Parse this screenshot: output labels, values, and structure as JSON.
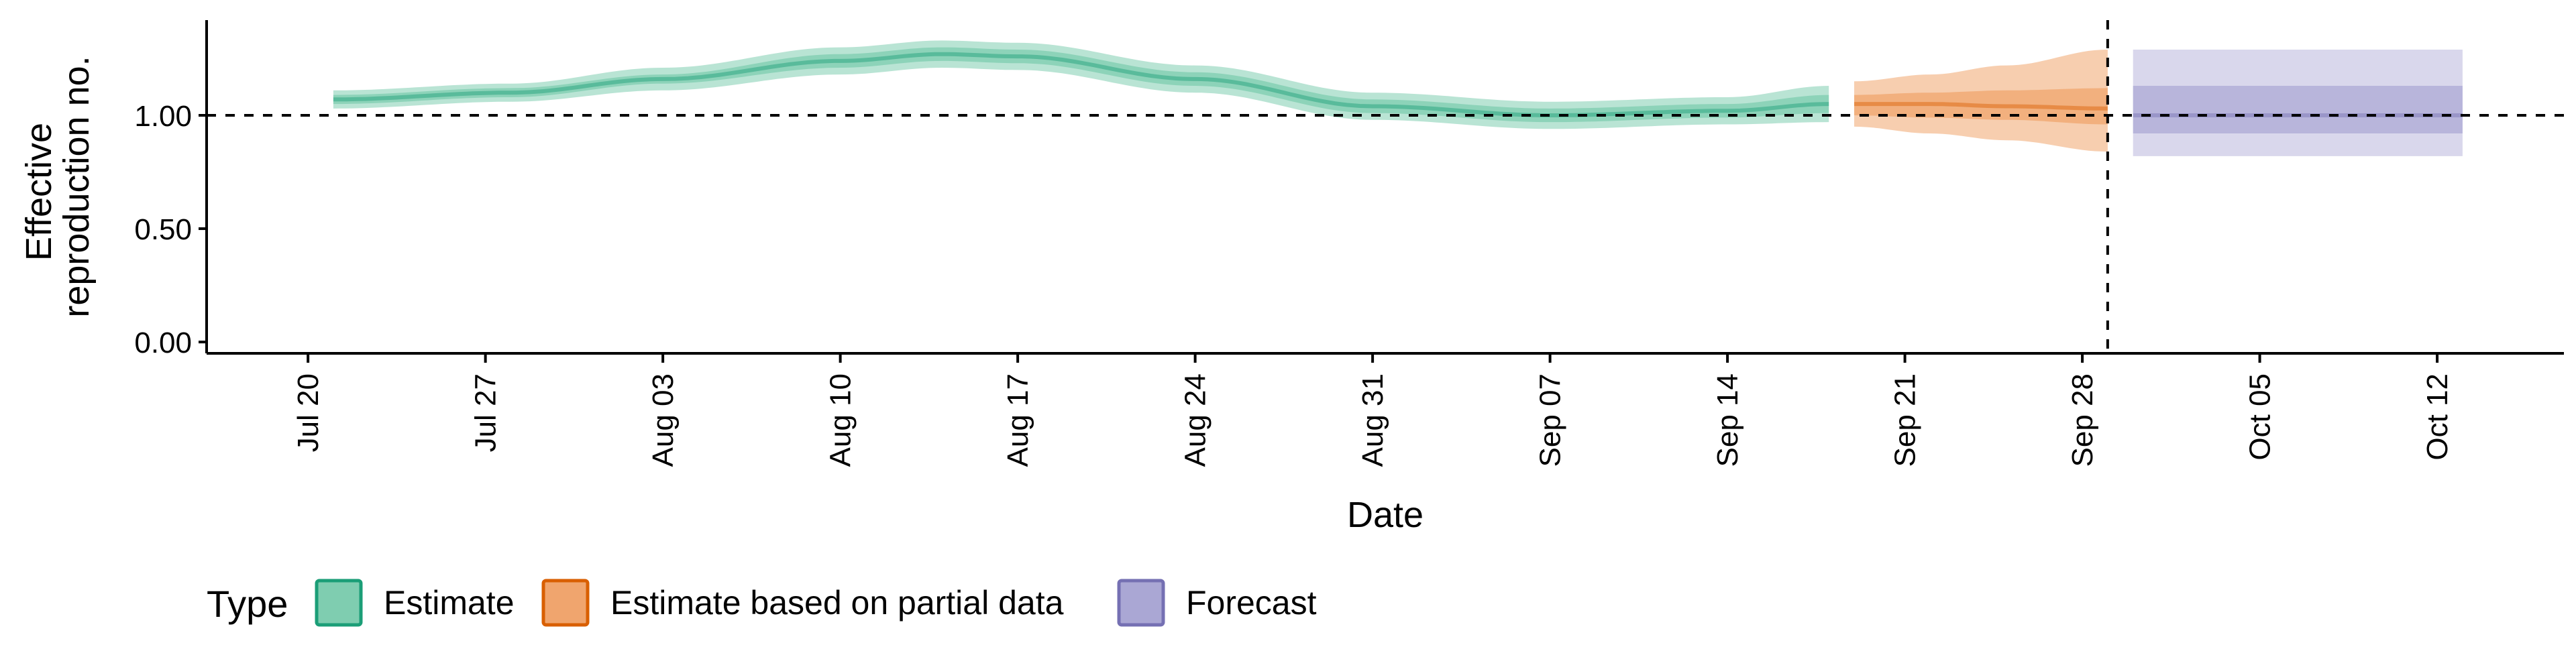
{
  "chart_data": {
    "type": "area",
    "title": "",
    "xlabel": "Date",
    "ylabel_lines": [
      "Effective",
      "reproduction no."
    ],
    "y_ticks": [
      "0.00",
      "0.50",
      "1.00"
    ],
    "y_tick_values": [
      0,
      0.5,
      1.0
    ],
    "ylim": [
      -0.05,
      1.42
    ],
    "x_domain": [
      "2021-07-16",
      "2021-10-17"
    ],
    "x_ticks": [
      {
        "date": "2021-07-20",
        "label": "Jul 20"
      },
      {
        "date": "2021-07-27",
        "label": "Jul 27"
      },
      {
        "date": "2021-08-03",
        "label": "Aug 03"
      },
      {
        "date": "2021-08-10",
        "label": "Aug 10"
      },
      {
        "date": "2021-08-17",
        "label": "Aug 17"
      },
      {
        "date": "2021-08-24",
        "label": "Aug 24"
      },
      {
        "date": "2021-08-31",
        "label": "Aug 31"
      },
      {
        "date": "2021-09-07",
        "label": "Sep 07"
      },
      {
        "date": "2021-09-14",
        "label": "Sep 14"
      },
      {
        "date": "2021-09-21",
        "label": "Sep 21"
      },
      {
        "date": "2021-09-28",
        "label": "Sep 28"
      },
      {
        "date": "2021-10-05",
        "label": "Oct 05"
      },
      {
        "date": "2021-10-12",
        "label": "Oct 12"
      }
    ],
    "reference_lines": {
      "y": 1.0,
      "x": "2021-09-29"
    },
    "legend": {
      "title": "Type",
      "position": "bottom"
    },
    "colors": {
      "estimate": "#1b9e77",
      "estimate_fill": "#7fcdb0",
      "partial": "#d95f02",
      "partial_fill": "#f0a56e",
      "forecast": "#7570b3",
      "forecast_fill": "#aaa7d4"
    },
    "series": [
      {
        "name": "Estimate",
        "key": "estimate",
        "points": [
          {
            "x": "2021-07-21",
            "median": 1.07,
            "lower_50": 1.05,
            "upper_50": 1.09,
            "lower_90": 1.03,
            "upper_90": 1.11
          },
          {
            "x": "2021-07-28",
            "median": 1.1,
            "lower_50": 1.08,
            "upper_50": 1.12,
            "lower_90": 1.06,
            "upper_90": 1.14
          },
          {
            "x": "2021-08-03",
            "median": 1.16,
            "lower_50": 1.14,
            "upper_50": 1.18,
            "lower_90": 1.11,
            "upper_90": 1.21
          },
          {
            "x": "2021-08-10",
            "median": 1.24,
            "lower_50": 1.21,
            "upper_50": 1.27,
            "lower_90": 1.18,
            "upper_90": 1.3
          },
          {
            "x": "2021-08-14",
            "median": 1.27,
            "lower_50": 1.24,
            "upper_50": 1.3,
            "lower_90": 1.21,
            "upper_90": 1.33
          },
          {
            "x": "2021-08-17",
            "median": 1.26,
            "lower_50": 1.23,
            "upper_50": 1.29,
            "lower_90": 1.2,
            "upper_90": 1.32
          },
          {
            "x": "2021-08-24",
            "median": 1.16,
            "lower_50": 1.13,
            "upper_50": 1.19,
            "lower_90": 1.1,
            "upper_90": 1.22
          },
          {
            "x": "2021-08-31",
            "median": 1.04,
            "lower_50": 1.01,
            "upper_50": 1.07,
            "lower_90": 0.98,
            "upper_90": 1.1
          },
          {
            "x": "2021-09-07",
            "median": 1.0,
            "lower_50": 0.97,
            "upper_50": 1.03,
            "lower_90": 0.94,
            "upper_90": 1.06
          },
          {
            "x": "2021-09-14",
            "median": 1.02,
            "lower_50": 0.99,
            "upper_50": 1.05,
            "lower_90": 0.96,
            "upper_90": 1.08
          },
          {
            "x": "2021-09-18",
            "median": 1.05,
            "lower_50": 1.01,
            "upper_50": 1.09,
            "lower_90": 0.97,
            "upper_90": 1.13
          }
        ]
      },
      {
        "name": "Estimate based on partial data",
        "key": "partial",
        "points": [
          {
            "x": "2021-09-19",
            "median": 1.05,
            "lower_50": 1.0,
            "upper_50": 1.09,
            "lower_90": 0.95,
            "upper_90": 1.15
          },
          {
            "x": "2021-09-22",
            "median": 1.05,
            "lower_50": 0.99,
            "upper_50": 1.1,
            "lower_90": 0.92,
            "upper_90": 1.18
          },
          {
            "x": "2021-09-25",
            "median": 1.04,
            "lower_50": 0.98,
            "upper_50": 1.11,
            "lower_90": 0.89,
            "upper_90": 1.22
          },
          {
            "x": "2021-09-29",
            "median": 1.03,
            "lower_50": 0.96,
            "upper_50": 1.12,
            "lower_90": 0.84,
            "upper_90": 1.29
          }
        ]
      },
      {
        "name": "Forecast",
        "key": "forecast",
        "points": [
          {
            "x": "2021-09-30",
            "median": 1.0,
            "lower_50": 0.92,
            "upper_50": 1.13,
            "lower_90": 0.82,
            "upper_90": 1.29
          },
          {
            "x": "2021-10-13",
            "median": 1.0,
            "lower_50": 0.92,
            "upper_50": 1.13,
            "lower_90": 0.82,
            "upper_90": 1.29
          }
        ]
      }
    ]
  }
}
